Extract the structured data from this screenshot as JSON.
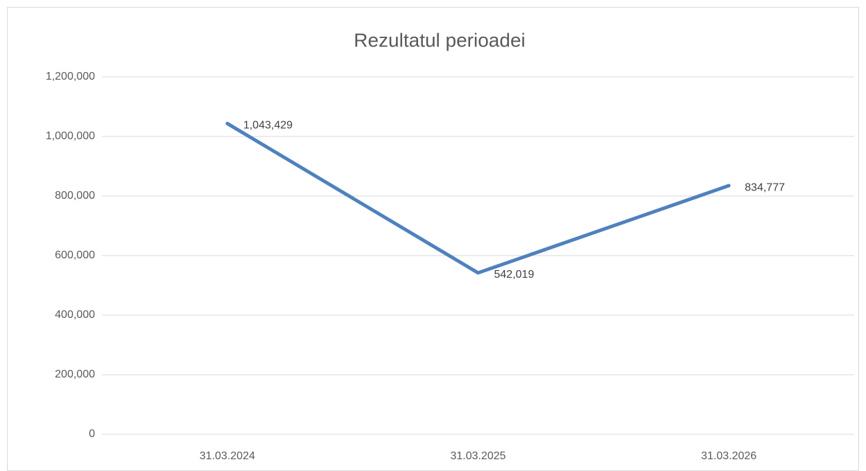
{
  "chart_data": {
    "type": "line",
    "title": "Rezultatul perioadei",
    "categories": [
      "31.03.2024",
      "31.03.2025",
      "31.03.2026"
    ],
    "series": [
      {
        "name": "Rezultatul perioadei",
        "color": "#4f81bd",
        "values": [
          1043429,
          542019,
          834777
        ],
        "value_labels": [
          "1,043,429",
          "542,019",
          "834,777"
        ]
      }
    ],
    "ylim": [
      0,
      1200000
    ],
    "yticks": [
      0,
      {
        "value": 200000,
        "label": "200,000"
      },
      {
        "value": 400000,
        "label": "400,000"
      },
      {
        "value": 600000,
        "label": "600,000"
      },
      {
        "value": 800000,
        "label": "800,000"
      },
      {
        "value": 1000000,
        "label": "1,000,000"
      },
      {
        "value": 1200000,
        "label": "1,200,000"
      }
    ],
    "grid": true
  }
}
